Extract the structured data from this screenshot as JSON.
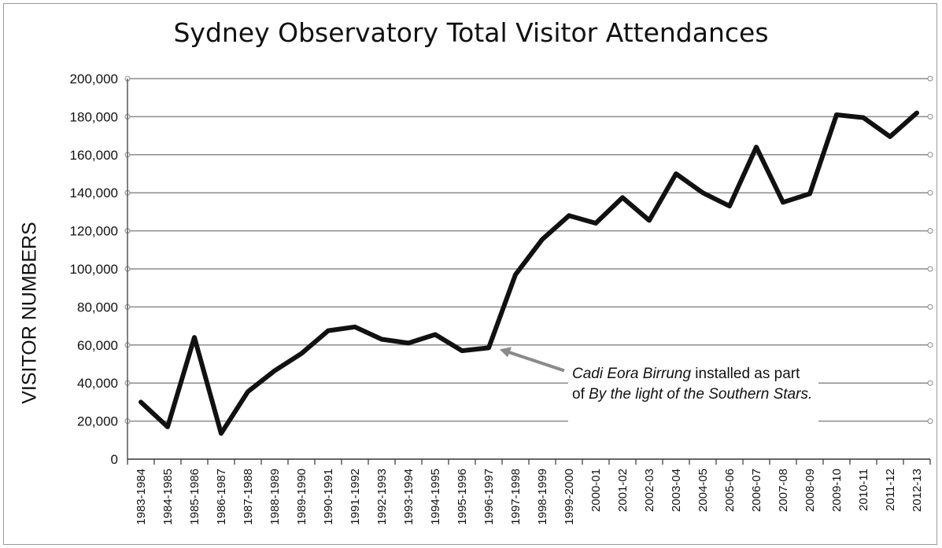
{
  "chart_data": {
    "type": "line",
    "title": "Sydney Observatory Total Visitor Attendances",
    "xlabel": "",
    "ylabel": "VISITOR NUMBERS",
    "ylim": [
      0,
      200000
    ],
    "y_ticks": [
      "0",
      "20,000",
      "40,000",
      "60,000",
      "80,000",
      "100,000",
      "120,000",
      "140,000",
      "160,000",
      "180,000",
      "200,000"
    ],
    "grid": true,
    "categories": [
      "1983-1984",
      "1984-1985",
      "1985-1986",
      "1986-1987",
      "1987-1988",
      "1988-1989",
      "1989-1990",
      "1990-1991",
      "1991-1992",
      "1992-1993",
      "1993-1994",
      "1994-1995",
      "1995-1996",
      "1996-1997",
      "1997-1998",
      "1998-1999",
      "1999-2000",
      "2000-01",
      "2001-02",
      "2002-03",
      "2003-04",
      "2004-05",
      "2005-06",
      "2006-07",
      "2007-08",
      "2008-09",
      "2009-10",
      "2010-11",
      "2011-12",
      "2012-13"
    ],
    "series": [
      {
        "values": [
          30000,
          17000,
          64000,
          13500,
          35500,
          46500,
          55500,
          67500,
          69500,
          63000,
          61000,
          65500,
          57000,
          58500,
          97000,
          115500,
          128000,
          124000,
          137500,
          125500,
          150000,
          140000,
          133000,
          164000,
          135000,
          139500,
          181000,
          179500,
          169500,
          182000
        ],
        "color": "#111111"
      }
    ],
    "annotation": {
      "at_category": "1996-1997",
      "italic_1": "Cadi Eora Birrung",
      "text_1": " installed as part of ",
      "italic_2": "By the light of the Southern Stars.",
      "arrow_color": "#8a8a8a"
    }
  }
}
